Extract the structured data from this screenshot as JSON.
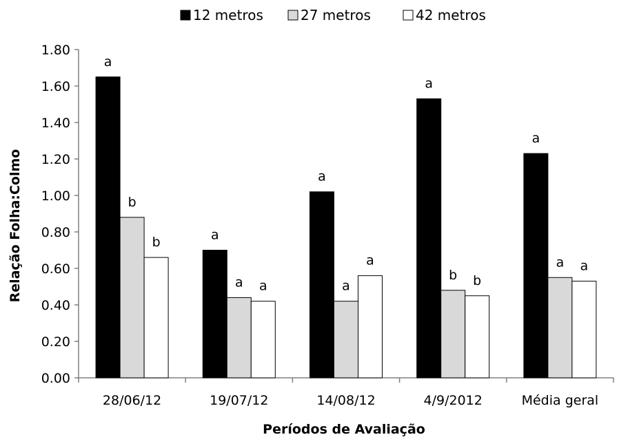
{
  "chart_data": {
    "type": "bar",
    "title": "",
    "xlabel": "Períodos de Avaliação",
    "ylabel": "Relação Folha:Colmo",
    "ylim": [
      0,
      1.8
    ],
    "ytick_step": 0.2,
    "ytick_labels": [
      "0.00",
      "0.20",
      "0.40",
      "0.60",
      "0.80",
      "1.00",
      "1.20",
      "1.40",
      "1.60",
      "1.80"
    ],
    "grid": false,
    "legend_position": "top-center",
    "categories": [
      "28/06/12",
      "19/07/12",
      "14/08/12",
      "4/9/2012",
      "Média geral"
    ],
    "series": [
      {
        "name": "12 metros",
        "color": "#000000",
        "values": [
          1.65,
          0.7,
          1.02,
          1.53,
          1.23
        ],
        "labels": [
          "a",
          "a",
          "a",
          "a",
          "a"
        ]
      },
      {
        "name": "27 metros",
        "color": "#d9d9d9",
        "values": [
          0.88,
          0.44,
          0.42,
          0.48,
          0.55
        ],
        "labels": [
          "b",
          "a",
          "a",
          "b",
          "a"
        ]
      },
      {
        "name": "42 metros",
        "color": "#ffffff",
        "values": [
          0.66,
          0.42,
          0.56,
          0.45,
          0.53
        ],
        "labels": [
          "b",
          "a",
          "a",
          "b",
          "a"
        ]
      }
    ]
  }
}
